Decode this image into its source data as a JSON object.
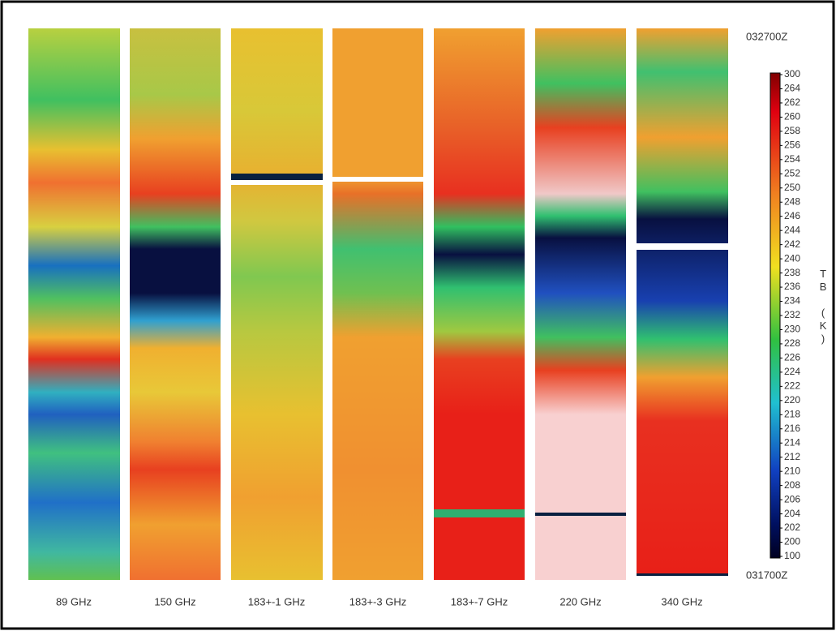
{
  "panels": [
    "89 GHz",
    "150 GHz",
    "183+-1 GHz",
    "183+-3 GHz",
    "183+-7 GHz",
    "220 GHz",
    "340 GHz"
  ],
  "time_top": "032700Z",
  "time_bottom": "031700Z",
  "colorbar": {
    "label": "TB (K)",
    "ticks": [
      "300",
      "264",
      "262",
      "260",
      "258",
      "256",
      "254",
      "252",
      "250",
      "248",
      "246",
      "244",
      "242",
      "240",
      "238",
      "236",
      "234",
      "232",
      "230",
      "228",
      "226",
      "224",
      "222",
      "220",
      "218",
      "216",
      "214",
      "212",
      "210",
      "208",
      "206",
      "204",
      "202",
      "200",
      "100"
    ]
  }
}
